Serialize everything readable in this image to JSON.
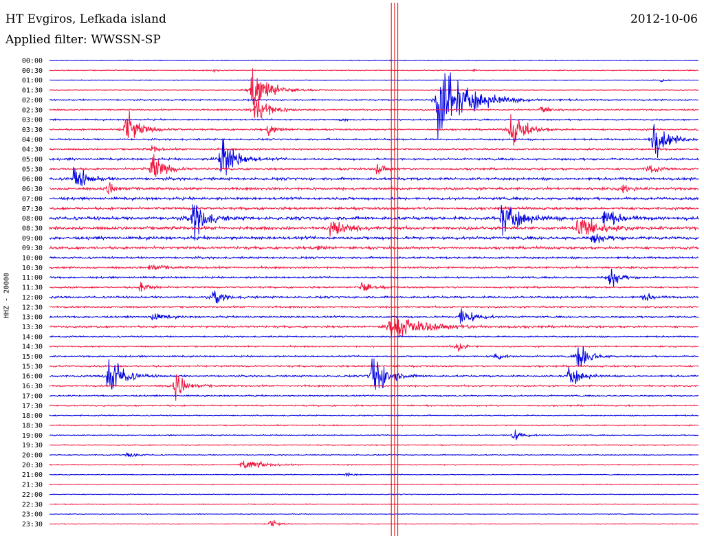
{
  "header": {
    "station": "HT Evgiros, Lefkada island",
    "date": "2012-10-06",
    "filter": "Applied filter: WWSSN-SP"
  },
  "chart_data": {
    "type": "line",
    "title": "HT Evgiros, Lefkada island",
    "ylabel": "HHZ - 20000",
    "colors": {
      "even_rows": "#0000e0",
      "odd_rows": "#f0143c",
      "markers": "#e00000"
    },
    "time_labels": [
      "00:00",
      "00:30",
      "01:00",
      "01:30",
      "02:00",
      "02:30",
      "03:00",
      "03:30",
      "04:00",
      "04:30",
      "05:00",
      "05:30",
      "06:00",
      "06:30",
      "07:00",
      "07:30",
      "08:00",
      "08:30",
      "09:00",
      "09:30",
      "10:00",
      "10:30",
      "11:00",
      "11:30",
      "12:00",
      "12:30",
      "13:00",
      "13:30",
      "14:00",
      "14:30",
      "15:00",
      "15:30",
      "16:00",
      "16:30",
      "17:00",
      "17:30",
      "18:00",
      "18:30",
      "19:00",
      "19:30",
      "20:00",
      "20:30",
      "21:00",
      "21:30",
      "22:00",
      "22:30",
      "23:00",
      "23:30"
    ],
    "trace_duration_min": 30,
    "noise_level": [
      0.6,
      0.6,
      0.5,
      0.5,
      1.0,
      1.0,
      1.0,
      1.2,
      1.2,
      1.2,
      1.4,
      1.4,
      1.8,
      1.8,
      1.8,
      1.8,
      2.2,
      2.2,
      2.0,
      1.8,
      1.4,
      1.4,
      1.2,
      1.2,
      1.4,
      1.2,
      1.2,
      1.4,
      1.0,
      1.0,
      1.0,
      1.2,
      1.2,
      1.2,
      1.0,
      1.0,
      0.8,
      0.8,
      0.7,
      0.7,
      0.7,
      0.7,
      0.6,
      0.6,
      0.6,
      0.6,
      0.5,
      0.5
    ],
    "events": [
      {
        "row": 1,
        "minute": 7.5,
        "amplitude": 4,
        "duration_min": 0.4
      },
      {
        "row": 1,
        "minute": 19.5,
        "amplitude": 3,
        "duration_min": 0.3
      },
      {
        "row": 2,
        "minute": 28.2,
        "amplitude": 6,
        "duration_min": 0.3
      },
      {
        "row": 3,
        "minute": 9.2,
        "amplitude": 40,
        "duration_min": 1.5
      },
      {
        "row": 4,
        "minute": 17.8,
        "amplitude": 60,
        "duration_min": 2.5
      },
      {
        "row": 5,
        "minute": 9.4,
        "amplitude": 30,
        "duration_min": 1.2
      },
      {
        "row": 5,
        "minute": 22.6,
        "amplitude": 8,
        "duration_min": 0.8
      },
      {
        "row": 6,
        "minute": 13.4,
        "amplitude": 4,
        "duration_min": 0.5
      },
      {
        "row": 7,
        "minute": 3.4,
        "amplitude": 30,
        "duration_min": 1.2
      },
      {
        "row": 7,
        "minute": 10.0,
        "amplitude": 12,
        "duration_min": 0.8
      },
      {
        "row": 7,
        "minute": 21.2,
        "amplitude": 30,
        "duration_min": 1.2
      },
      {
        "row": 8,
        "minute": 27.8,
        "amplitude": 30,
        "duration_min": 1.2
      },
      {
        "row": 9,
        "minute": 4.6,
        "amplitude": 8,
        "duration_min": 0.6
      },
      {
        "row": 10,
        "minute": 7.8,
        "amplitude": 40,
        "duration_min": 1.2
      },
      {
        "row": 11,
        "minute": 4.6,
        "amplitude": 30,
        "duration_min": 1.0
      },
      {
        "row": 11,
        "minute": 15.0,
        "amplitude": 10,
        "duration_min": 0.8
      },
      {
        "row": 11,
        "minute": 27.5,
        "amplitude": 10,
        "duration_min": 0.8
      },
      {
        "row": 12,
        "minute": 1.0,
        "amplitude": 25,
        "duration_min": 1.0
      },
      {
        "row": 13,
        "minute": 2.6,
        "amplitude": 12,
        "duration_min": 0.8
      },
      {
        "row": 13,
        "minute": 26.4,
        "amplitude": 12,
        "duration_min": 0.6
      },
      {
        "row": 16,
        "minute": 6.5,
        "amplitude": 40,
        "duration_min": 1.0
      },
      {
        "row": 16,
        "minute": 20.8,
        "amplitude": 30,
        "duration_min": 1.5
      },
      {
        "row": 16,
        "minute": 25.5,
        "amplitude": 15,
        "duration_min": 1.2
      },
      {
        "row": 17,
        "minute": 12.9,
        "amplitude": 20,
        "duration_min": 1.2
      },
      {
        "row": 17,
        "minute": 24.3,
        "amplitude": 25,
        "duration_min": 1.5
      },
      {
        "row": 18,
        "minute": 25.0,
        "amplitude": 10,
        "duration_min": 1.0
      },
      {
        "row": 19,
        "minute": 12.3,
        "amplitude": 6,
        "duration_min": 0.6
      },
      {
        "row": 21,
        "minute": 4.5,
        "amplitude": 8,
        "duration_min": 1.0
      },
      {
        "row": 22,
        "minute": 25.8,
        "amplitude": 20,
        "duration_min": 0.8
      },
      {
        "row": 23,
        "minute": 4.1,
        "amplitude": 10,
        "duration_min": 0.8
      },
      {
        "row": 23,
        "minute": 14.3,
        "amplitude": 12,
        "duration_min": 0.8
      },
      {
        "row": 24,
        "minute": 7.5,
        "amplitude": 15,
        "duration_min": 0.8
      },
      {
        "row": 24,
        "minute": 27.4,
        "amplitude": 10,
        "duration_min": 0.6
      },
      {
        "row": 26,
        "minute": 4.6,
        "amplitude": 8,
        "duration_min": 1.0
      },
      {
        "row": 26,
        "minute": 18.9,
        "amplitude": 20,
        "duration_min": 1.0
      },
      {
        "row": 27,
        "minute": 15.5,
        "amplitude": 15,
        "duration_min": 3.5
      },
      {
        "row": 29,
        "minute": 18.7,
        "amplitude": 15,
        "duration_min": 0.6
      },
      {
        "row": 30,
        "minute": 20.5,
        "amplitude": 10,
        "duration_min": 0.6
      },
      {
        "row": 30,
        "minute": 24.3,
        "amplitude": 25,
        "duration_min": 1.0
      },
      {
        "row": 32,
        "minute": 2.6,
        "amplitude": 40,
        "duration_min": 1.2
      },
      {
        "row": 32,
        "minute": 14.8,
        "amplitude": 40,
        "duration_min": 1.2
      },
      {
        "row": 32,
        "minute": 23.9,
        "amplitude": 20,
        "duration_min": 1.0
      },
      {
        "row": 33,
        "minute": 5.7,
        "amplitude": 25,
        "duration_min": 1.0
      },
      {
        "row": 38,
        "minute": 21.3,
        "amplitude": 12,
        "duration_min": 0.8
      },
      {
        "row": 40,
        "minute": 3.5,
        "amplitude": 6,
        "duration_min": 0.8
      },
      {
        "row": 41,
        "minute": 8.8,
        "amplitude": 10,
        "duration_min": 1.5
      },
      {
        "row": 42,
        "minute": 13.6,
        "amplitude": 4,
        "duration_min": 0.6
      },
      {
        "row": 47,
        "minute": 10.1,
        "amplitude": 10,
        "duration_min": 0.6
      }
    ],
    "calibration_markers_minute": [
      15.8,
      15.95,
      16.1
    ]
  }
}
